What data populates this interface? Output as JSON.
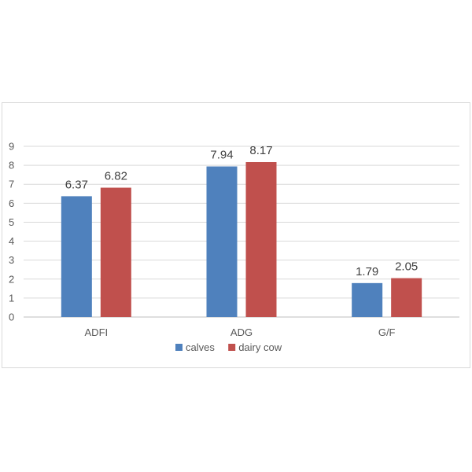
{
  "chart_data": {
    "type": "bar",
    "categories": [
      "ADFI",
      "ADG",
      "G/F"
    ],
    "series": [
      {
        "name": "calves",
        "values": [
          6.37,
          7.94,
          1.79
        ],
        "color": "#4f81bd"
      },
      {
        "name": "dairy cow",
        "values": [
          6.82,
          8.17,
          2.05
        ],
        "color": "#c0504d"
      }
    ],
    "data_labels": [
      [
        "6.37",
        "7.94",
        "1.79"
      ],
      [
        "6.82",
        "8.17",
        "2.05"
      ]
    ],
    "y_ticks": [
      "0",
      "1",
      "2",
      "3",
      "4",
      "5",
      "6",
      "7",
      "8",
      "9"
    ],
    "ylim": [
      0,
      9
    ],
    "grid": true,
    "gridline_color": "#d9d9d9",
    "axis_color": "#bfbfbf",
    "legend_position": "bottom",
    "title": "",
    "xlabel": "",
    "ylabel": ""
  }
}
